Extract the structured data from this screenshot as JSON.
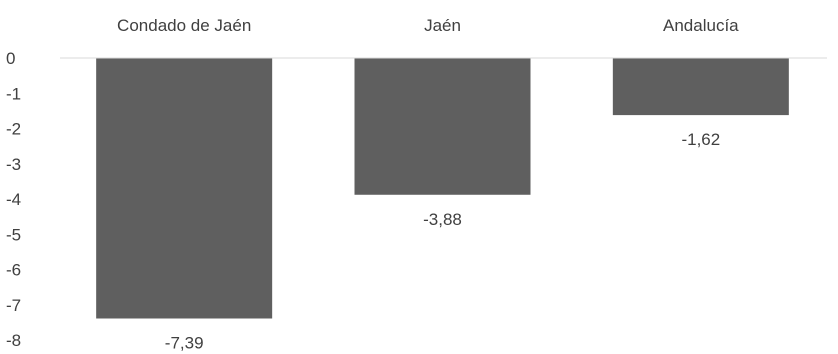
{
  "chart_data": {
    "type": "bar",
    "title": "",
    "xlabel": "",
    "ylabel": "",
    "categories": [
      "Condado de Jaén",
      "Jaén",
      "Andalucía"
    ],
    "values": [
      -7.39,
      -3.88,
      -1.62
    ],
    "data_labels": [
      "-7,39",
      "-3,88",
      "-1,62"
    ],
    "ylim": [
      -8,
      0
    ],
    "yticks": [
      0,
      -1,
      -2,
      -3,
      -4,
      -5,
      -6,
      -7,
      -8
    ],
    "ytick_labels": [
      "0",
      "-1",
      "-2",
      "-3",
      "-4",
      "-5",
      "-6",
      "-7",
      "-8"
    ],
    "category_axis_position": "top",
    "grid": false,
    "legend": false,
    "bar_color": "#5f5f5f",
    "text_color": "#404040",
    "axis_color": "#d9d9d9"
  }
}
